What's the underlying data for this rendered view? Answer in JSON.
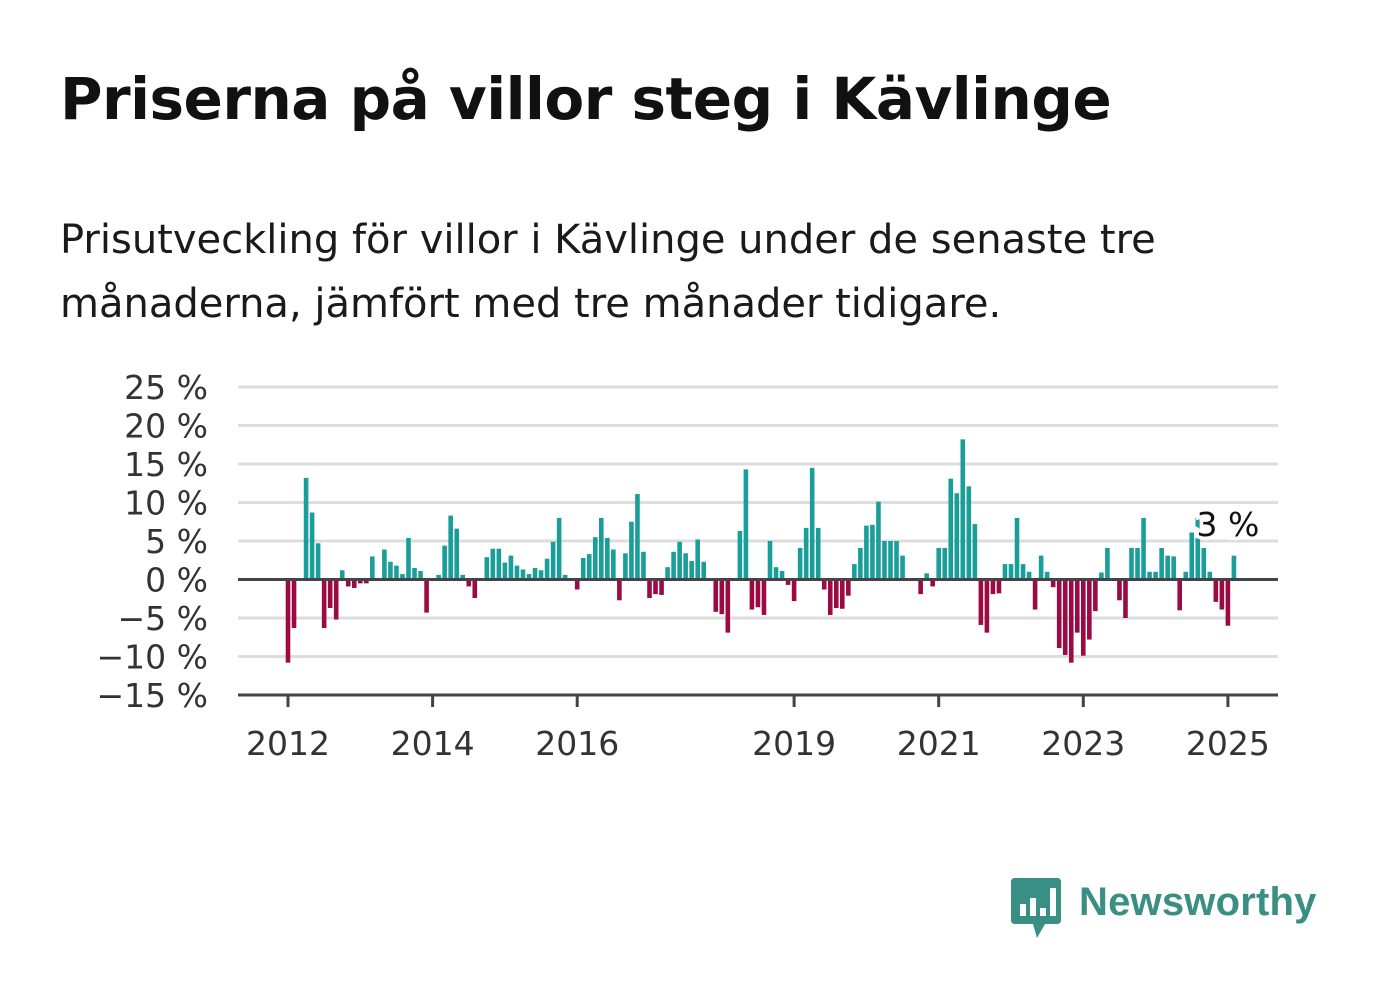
{
  "title": "Priserna på villor steg i Kävlinge",
  "subtitle": "Prisutveckling för villor i Kävlinge under de senaste tre månaderna, jämfört med tre månader tidigare.",
  "brand": {
    "name": "Newsworthy",
    "color": "#3a8f85",
    "icon": "bar-chart-speech-bubble-icon"
  },
  "colors": {
    "positive": "#1a9e9a",
    "negative": "#9c0a43",
    "grid": "#dddddd",
    "axis": "#444444",
    "text": "#333333"
  },
  "chart_data": {
    "type": "bar",
    "title": "Priserna på villor steg i Kävlinge",
    "subtitle": "Prisutveckling för villor i Kävlinge under de senaste tre månaderna, jämfört med tre månader tidigare.",
    "xlabel": "",
    "ylabel": "",
    "unit": "%",
    "ylim": [
      -15,
      25
    ],
    "yticks": [
      25,
      20,
      15,
      10,
      5,
      0,
      -5,
      -10,
      -15
    ],
    "ytick_labels": [
      "25 %",
      "20 %",
      "15 %",
      "10 %",
      "5 %",
      "0 %",
      "−5 %",
      "−10 %",
      "−15 %"
    ],
    "xticks": [
      "2012",
      "2014",
      "2016",
      "2019",
      "2021",
      "2023",
      "2025"
    ],
    "xtick_years": [
      2012,
      2014,
      2016,
      2019,
      2021,
      2023,
      2025
    ],
    "x_start": "2012-01",
    "x_end": "2025-01",
    "grid": true,
    "annotation": {
      "label": "3 %",
      "x": "2025-01",
      "y": 3
    },
    "series": [
      {
        "values": [
          -10.8,
          -6.3,
          null,
          13.2,
          8.7,
          4.7,
          -6.3,
          -3.7,
          -5.2,
          1.2,
          -0.9,
          -1.1,
          -0.5,
          -0.5,
          3.0,
          null,
          3.9,
          2.3,
          1.8,
          0.7,
          5.4,
          1.5,
          1.1,
          -4.3,
          null,
          0.6,
          4.4,
          8.3,
          6.6,
          0.6,
          -0.9,
          -2.4,
          null,
          2.9,
          4.0,
          4.0,
          2.2,
          3.1,
          1.8,
          1.3,
          0.7,
          1.5,
          1.2,
          2.7,
          4.9,
          8.0,
          0.6,
          null,
          -1.3,
          2.8,
          3.3,
          5.5,
          8.0,
          5.4,
          3.9,
          -2.7,
          3.4,
          7.5,
          11.1,
          3.6,
          -2.4,
          -1.9,
          -2.0,
          1.6,
          3.6,
          4.9,
          3.4,
          2.4,
          5.2,
          2.3,
          null,
          -4.2,
          -4.5,
          -6.9,
          null,
          6.3,
          14.3,
          -3.9,
          -3.6,
          -4.6,
          5.0,
          1.6,
          1.1,
          -0.7,
          -2.8,
          4.1,
          6.7,
          14.5,
          6.7,
          -1.3,
          -4.6,
          -3.7,
          -3.8,
          -2.1,
          2.0,
          4.1,
          7.0,
          7.1,
          10.1,
          5.0,
          5.0,
          5.0,
          3.1,
          null,
          null,
          -1.9,
          0.8,
          -0.9,
          4.1,
          4.1,
          13.1,
          11.2,
          18.2,
          12.1,
          7.2,
          -5.9,
          -6.9,
          -1.9,
          -1.8,
          2.0,
          2.0,
          8.0,
          2.0,
          1.0,
          -3.9,
          3.1,
          1.0,
          -1.0,
          -8.9,
          -9.8,
          -10.8,
          -6.9,
          -9.9,
          -7.8,
          -4.1,
          0.9,
          4.1,
          null,
          -2.7,
          -5.0,
          4.1,
          4.1,
          8.0,
          1.0,
          1.0,
          4.1,
          3.1,
          3.0,
          -4.0,
          1.0,
          6.1,
          8.0,
          4.1,
          1.0,
          -2.9,
          -3.9,
          -6.0,
          3.1
        ]
      }
    ]
  }
}
